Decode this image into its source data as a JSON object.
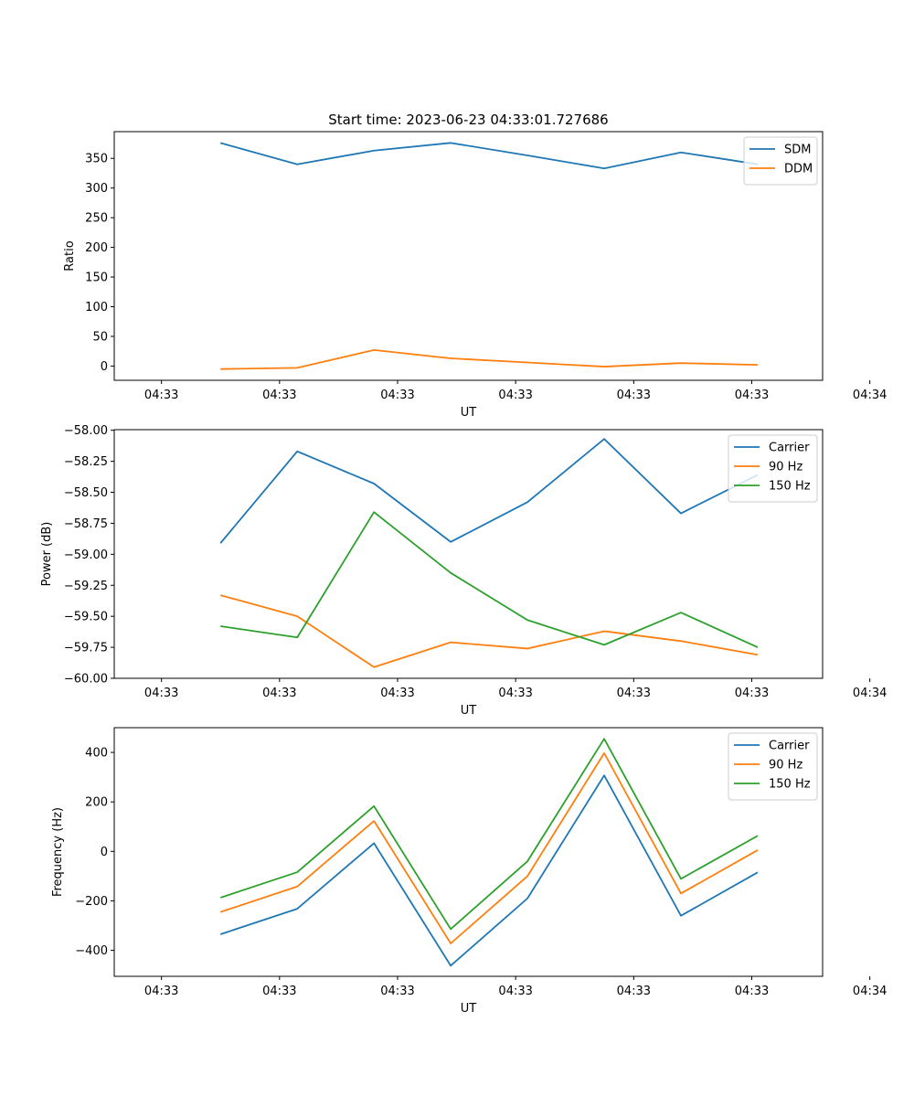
{
  "figure": {
    "title": "Start time: 2023-06-23 04:33:01.727686"
  },
  "chart_data": [
    {
      "type": "line",
      "title": "Start time: 2023-06-23 04:33:01.727686",
      "xlabel": "UT",
      "ylabel": "Ratio",
      "x_tick_labels": [
        "04:33",
        "04:33",
        "04:33",
        "04:33",
        "04:33",
        "04:33",
        "04:34"
      ],
      "y_ticks": [
        0,
        50,
        100,
        150,
        200,
        250,
        300,
        350
      ],
      "y_tick_labels": [
        "0",
        "50",
        "100",
        "150",
        "200",
        "250",
        "300",
        "350"
      ],
      "ylim": [
        -24,
        395
      ],
      "x_range_seconds": [
        1.0,
        4.0
      ],
      "x_tick_seconds": [
        1.2,
        1.7,
        2.2,
        2.7,
        3.2,
        3.7,
        4.2
      ],
      "x_seconds": [
        1.45,
        1.775,
        2.1,
        2.425,
        2.75,
        3.075,
        3.4,
        3.725
      ],
      "series": [
        {
          "name": "SDM",
          "color": "#1f77b4",
          "values": [
            376,
            340,
            363,
            376,
            355,
            333,
            360,
            340
          ]
        },
        {
          "name": "DDM",
          "color": "#ff7f0e",
          "values": [
            -5,
            -3,
            27,
            13,
            6,
            -1,
            5,
            2
          ]
        }
      ],
      "legend": "upper right",
      "grid": false
    },
    {
      "type": "line",
      "title": "",
      "xlabel": "UT",
      "ylabel": "Power (dB)",
      "x_tick_labels": [
        "04:33",
        "04:33",
        "04:33",
        "04:33",
        "04:33",
        "04:33",
        "04:34"
      ],
      "y_ticks": [
        -60.0,
        -59.75,
        -59.5,
        -59.25,
        -59.0,
        -58.75,
        -58.5,
        -58.25,
        -58.0
      ],
      "y_tick_labels": [
        "−60.00",
        "−59.75",
        "−59.50",
        "−59.25",
        "−59.00",
        "−58.75",
        "−58.50",
        "−58.25",
        "−58.00"
      ],
      "ylim": [
        -60.0,
        -57.995
      ],
      "x_range_seconds": [
        1.0,
        4.0
      ],
      "x_tick_seconds": [
        1.2,
        1.7,
        2.2,
        2.7,
        3.2,
        3.7,
        4.2
      ],
      "x_seconds": [
        1.45,
        1.775,
        2.1,
        2.425,
        2.75,
        3.075,
        3.4,
        3.725
      ],
      "series": [
        {
          "name": "Carrier",
          "color": "#1f77b4",
          "values": [
            -58.91,
            -58.17,
            -58.43,
            -58.9,
            -58.58,
            -58.07,
            -58.67,
            -58.36
          ]
        },
        {
          "name": "90 Hz",
          "color": "#ff7f0e",
          "values": [
            -59.33,
            -59.5,
            -59.91,
            -59.71,
            -59.76,
            -59.62,
            -59.7,
            -59.81
          ]
        },
        {
          "name": "150 Hz",
          "color": "#2ca02c",
          "values": [
            -59.58,
            -59.67,
            -58.66,
            -59.15,
            -59.53,
            -59.73,
            -59.47,
            -59.75
          ]
        }
      ],
      "legend": "upper right",
      "grid": false
    },
    {
      "type": "line",
      "title": "",
      "xlabel": "UT",
      "ylabel": "Frequency (Hz)",
      "x_tick_labels": [
        "04:33",
        "04:33",
        "04:33",
        "04:33",
        "04:33",
        "04:33",
        "04:34"
      ],
      "y_ticks": [
        -400,
        -200,
        0,
        200,
        400
      ],
      "y_tick_labels": [
        "−400",
        "−200",
        "0",
        "200",
        "400"
      ],
      "ylim": [
        -505,
        500
      ],
      "x_range_seconds": [
        1.0,
        4.0
      ],
      "x_tick_seconds": [
        1.2,
        1.7,
        2.2,
        2.7,
        3.2,
        3.7,
        4.2
      ],
      "x_seconds": [
        1.45,
        1.775,
        2.1,
        2.425,
        2.75,
        3.075,
        3.4,
        3.725
      ],
      "series": [
        {
          "name": "Carrier",
          "color": "#1f77b4",
          "values": [
            -335,
            -232,
            33,
            -462,
            -190,
            307,
            -260,
            -85
          ]
        },
        {
          "name": "90 Hz",
          "color": "#ff7f0e",
          "values": [
            -245,
            -142,
            123,
            -372,
            -100,
            397,
            -170,
            5
          ]
        },
        {
          "name": "150 Hz",
          "color": "#2ca02c",
          "values": [
            -187,
            -84,
            183,
            -314,
            -40,
            455,
            -111,
            63
          ]
        }
      ],
      "legend": "upper right",
      "grid": false
    }
  ]
}
